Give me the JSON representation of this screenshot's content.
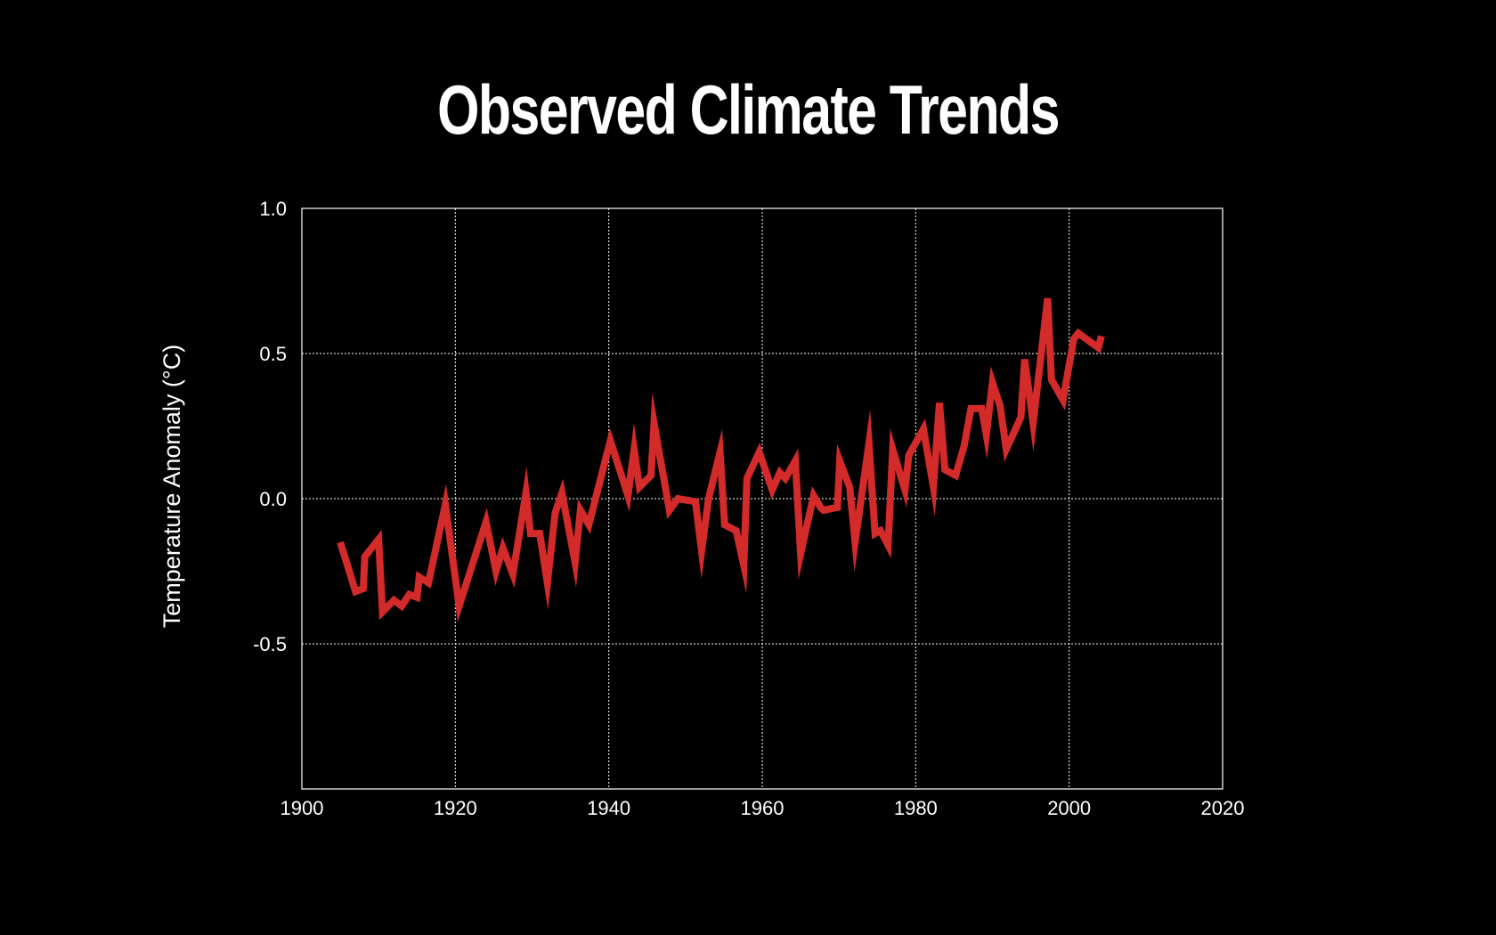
{
  "chart_data": {
    "type": "line",
    "title": "Observed Climate Trends",
    "xlabel": "",
    "ylabel": "Temperature Anomaly (°C)",
    "xlim": [
      1900,
      2020
    ],
    "ylim": [
      -1.0,
      1.0
    ],
    "x_ticks": [
      "1900",
      "1920",
      "1940",
      "1960",
      "1980",
      "2000",
      "2020"
    ],
    "x_tick_values": [
      1900,
      1920,
      1940,
      1960,
      1980,
      2000,
      2020
    ],
    "y_ticks": [
      "1.0",
      "0.5",
      "0.0",
      "-0.5"
    ],
    "y_tick_values": [
      1.0,
      0.5,
      0.0,
      -0.5
    ],
    "grid": true,
    "line_color": "#d32a2a",
    "background_color": "#000000",
    "text_color": "#ffffff",
    "series": [
      {
        "x": [
          1905,
          1907,
          1908,
          1908.2,
          1910,
          1910.5,
          1912,
          1913,
          1914,
          1915,
          1915.3,
          1916.5,
          1918.7,
          1920.5,
          1924,
          1925.3,
          1926.2,
          1927.5,
          1929.2,
          1929.8,
          1931,
          1932,
          1933,
          1933.9,
          1935.6,
          1936.3,
          1937.4,
          1940.2,
          1942.5,
          1943.3,
          1944,
          1945.5,
          1945.9,
          1947.9,
          1949,
          1951.3,
          1952.1,
          1953,
          1954.5,
          1955.1,
          1956.6,
          1957.6,
          1958,
          1959.6,
          1961.3,
          1962.3,
          1963,
          1964.3,
          1965,
          1966.7,
          1967.6,
          1968,
          1969.8,
          1970.1,
          1971.4,
          1972.1,
          1973.9,
          1974.7,
          1975.4,
          1976.4,
          1977,
          1978.6,
          1979.1,
          1981,
          1982.3,
          1983.1,
          1983.8,
          1985.2,
          1986.3,
          1987.2,
          1988.6,
          1989.2,
          1990,
          1991,
          1991.8,
          1993.7,
          1994.2,
          1995.3,
          1997.2,
          1997.7,
          1999.2,
          2000.6,
          2001.2,
          2003.8,
          2004.2
        ],
        "y": [
          -0.15,
          -0.32,
          -0.31,
          -0.2,
          -0.14,
          -0.39,
          -0.35,
          -0.37,
          -0.33,
          -0.34,
          -0.27,
          -0.29,
          -0.02,
          -0.37,
          -0.08,
          -0.25,
          -0.17,
          -0.26,
          0.02,
          -0.12,
          -0.12,
          -0.29,
          -0.05,
          0.02,
          -0.22,
          -0.04,
          -0.09,
          0.2,
          0.01,
          0.17,
          0.04,
          0.08,
          0.26,
          -0.04,
          0.0,
          -0.01,
          -0.18,
          0.0,
          0.16,
          -0.09,
          -0.11,
          -0.23,
          0.07,
          0.16,
          0.03,
          0.09,
          0.07,
          0.13,
          -0.19,
          0.01,
          -0.03,
          -0.04,
          -0.03,
          0.13,
          0.04,
          -0.15,
          0.19,
          -0.12,
          -0.11,
          -0.16,
          0.17,
          0.03,
          0.15,
          0.24,
          0.04,
          0.33,
          0.1,
          0.08,
          0.18,
          0.31,
          0.31,
          0.22,
          0.4,
          0.32,
          0.17,
          0.28,
          0.48,
          0.26,
          0.69,
          0.41,
          0.34,
          0.55,
          0.57,
          0.52,
          0.56
        ]
      }
    ]
  }
}
